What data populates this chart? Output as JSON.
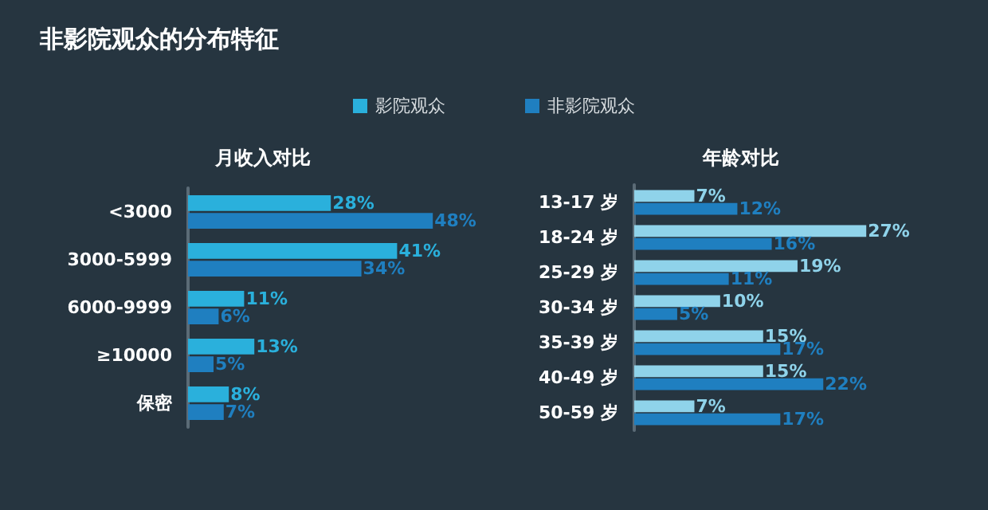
{
  "chart_data": [
    {
      "type": "bar",
      "title": "非影院观众的分布特征",
      "subtitle": "月收入对比",
      "orientation": "horizontal",
      "legend": "top",
      "tick_labels": "y",
      "categories": [
        "<3000",
        "3000-5999",
        "6000-9999",
        "≥10000",
        "保密"
      ],
      "series": [
        {
          "name": "影院观众",
          "color": "#2ab0dc",
          "values": [
            28,
            41,
            11,
            13,
            8
          ],
          "value_labels": [
            "28%",
            "41%",
            "11%",
            "13%",
            "8%"
          ]
        },
        {
          "name": "非影院观众",
          "color": "#1f7fc0",
          "values": [
            48,
            34,
            6,
            5,
            7
          ],
          "value_labels": [
            "48%",
            "34%",
            "6%",
            "5%",
            "7%"
          ]
        }
      ]
    },
    {
      "type": "bar",
      "title": "年龄对比",
      "orientation": "horizontal",
      "tick_labels": "y",
      "categories": [
        "13-17 岁",
        "18-24 岁",
        "25-29 岁",
        "30-34 岁",
        "35-39 岁",
        "40-49 岁",
        "50-59 岁"
      ],
      "series": [
        {
          "color": "#8fd3ea",
          "values": [
            7,
            27,
            19,
            10,
            15,
            15,
            7
          ],
          "value_labels": [
            "7%",
            "27%",
            "19%",
            "10%",
            "15%",
            "15%",
            "7%"
          ]
        },
        {
          "color": "#1f7fc0",
          "values": [
            12,
            16,
            11,
            5,
            17,
            22,
            17
          ],
          "value_labels": [
            "12%",
            "16%",
            "11%",
            "5%",
            "17%",
            "22%",
            "17%"
          ]
        }
      ]
    }
  ]
}
